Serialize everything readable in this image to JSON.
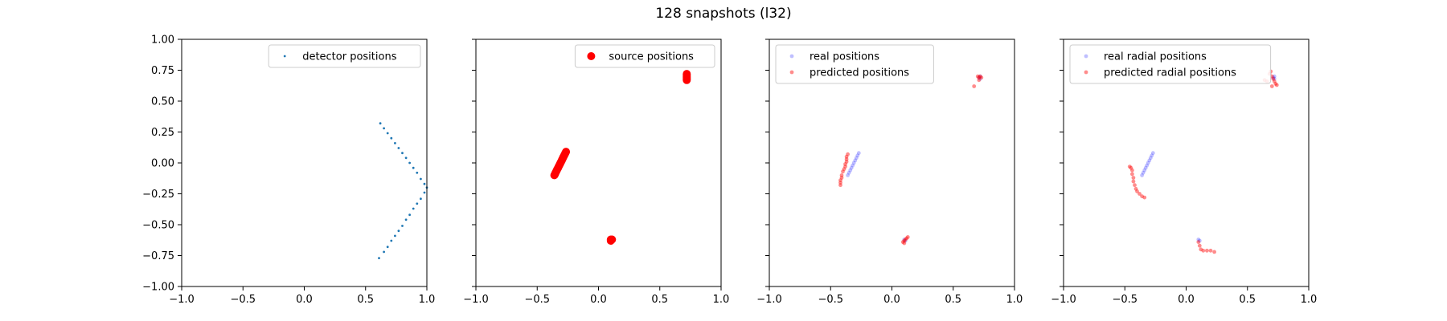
{
  "figure": {
    "title": "128 snapshots (l32)"
  },
  "chart_data": [
    {
      "type": "scatter",
      "xlim": [
        -1.0,
        1.0
      ],
      "ylim": [
        -1.0,
        1.0
      ],
      "xticks": [
        "−1.0",
        "−0.5",
        "0.0",
        "0.5",
        "1.0"
      ],
      "yticks": [
        "1.00",
        "0.75",
        "0.50",
        "0.25",
        "0.00",
        "−0.25",
        "−0.50",
        "−0.75",
        "−1.00"
      ],
      "show_yticklabels": true,
      "legend_position": "top-right",
      "series": [
        {
          "name": "detector positions",
          "color": "#1f77b4",
          "points": [
            [
              0.62,
              0.32
            ],
            [
              0.65,
              0.28
            ],
            [
              0.68,
              0.24
            ],
            [
              0.71,
              0.2
            ],
            [
              0.74,
              0.16
            ],
            [
              0.77,
              0.12
            ],
            [
              0.8,
              0.08
            ],
            [
              0.83,
              0.04
            ],
            [
              0.86,
              0.0
            ],
            [
              0.89,
              -0.04
            ],
            [
              0.92,
              -0.08
            ],
            [
              0.95,
              -0.13
            ],
            [
              0.98,
              -0.17
            ],
            [
              1.0,
              -0.2
            ],
            [
              0.98,
              -0.24
            ],
            [
              0.95,
              -0.29
            ],
            [
              0.92,
              -0.33
            ],
            [
              0.89,
              -0.37
            ],
            [
              0.86,
              -0.42
            ],
            [
              0.83,
              -0.46
            ],
            [
              0.8,
              -0.51
            ],
            [
              0.77,
              -0.55
            ],
            [
              0.74,
              -0.59
            ],
            [
              0.71,
              -0.63
            ],
            [
              0.68,
              -0.68
            ],
            [
              0.65,
              -0.72
            ],
            [
              0.61,
              -0.77
            ]
          ]
        }
      ]
    },
    {
      "type": "scatter",
      "xlim": [
        -1.0,
        1.0
      ],
      "ylim": [
        -1.0,
        1.0
      ],
      "xticks": [
        "−1.0",
        "−0.5",
        "0.0",
        "0.5",
        "1.0"
      ],
      "show_yticklabels": false,
      "legend_position": "top-right",
      "series": [
        {
          "name": "source positions",
          "color": "#ff0000",
          "points": [
            [
              -0.36,
              -0.1
            ],
            [
              -0.355,
              -0.09
            ],
            [
              -0.35,
              -0.08
            ],
            [
              -0.345,
              -0.07
            ],
            [
              -0.34,
              -0.06
            ],
            [
              -0.335,
              -0.05
            ],
            [
              -0.33,
              -0.04
            ],
            [
              -0.325,
              -0.03
            ],
            [
              -0.32,
              -0.02
            ],
            [
              -0.315,
              -0.01
            ],
            [
              -0.31,
              0.0
            ],
            [
              -0.305,
              0.01
            ],
            [
              -0.3,
              0.02
            ],
            [
              -0.295,
              0.03
            ],
            [
              -0.29,
              0.04
            ],
            [
              -0.285,
              0.05
            ],
            [
              -0.28,
              0.06
            ],
            [
              -0.275,
              0.07
            ],
            [
              -0.27,
              0.08
            ],
            [
              -0.265,
              0.09
            ],
            [
              0.72,
              0.72
            ],
            [
              0.72,
              0.71
            ],
            [
              0.72,
              0.7
            ],
            [
              0.72,
              0.69
            ],
            [
              0.72,
              0.68
            ],
            [
              0.72,
              0.67
            ],
            [
              0.1,
              -0.62
            ],
            [
              0.11,
              -0.62
            ],
            [
              0.1,
              -0.63
            ]
          ]
        }
      ]
    },
    {
      "type": "scatter",
      "xlim": [
        -1.0,
        1.0
      ],
      "ylim": [
        -1.0,
        1.0
      ],
      "xticks": [
        "−1.0",
        "−0.5",
        "0.0",
        "0.5",
        "1.0"
      ],
      "show_yticklabels": false,
      "legend_position": "top-left",
      "series": [
        {
          "name": "real positions",
          "color": "#0000ff",
          "points": [
            [
              -0.36,
              -0.1
            ],
            [
              -0.35,
              -0.08
            ],
            [
              -0.34,
              -0.06
            ],
            [
              -0.33,
              -0.04
            ],
            [
              -0.32,
              -0.02
            ],
            [
              -0.31,
              0.0
            ],
            [
              -0.3,
              0.02
            ],
            [
              -0.29,
              0.04
            ],
            [
              -0.28,
              0.06
            ],
            [
              -0.27,
              0.08
            ],
            [
              0.72,
              0.7
            ],
            [
              0.71,
              0.69
            ],
            [
              0.72,
              0.68
            ],
            [
              0.1,
              -0.62
            ],
            [
              0.11,
              -0.63
            ]
          ]
        },
        {
          "name": "predicted positions",
          "color": "#ff0000",
          "points": [
            [
              -0.42,
              -0.18
            ],
            [
              -0.42,
              -0.16
            ],
            [
              -0.42,
              -0.14
            ],
            [
              -0.41,
              -0.12
            ],
            [
              -0.41,
              -0.1
            ],
            [
              -0.4,
              -0.07
            ],
            [
              -0.39,
              -0.05
            ],
            [
              -0.38,
              -0.03
            ],
            [
              -0.38,
              -0.01
            ],
            [
              -0.37,
              0.01
            ],
            [
              -0.37,
              0.03
            ],
            [
              -0.37,
              0.05
            ],
            [
              -0.36,
              0.07
            ],
            [
              0.7,
              0.7
            ],
            [
              0.71,
              0.69
            ],
            [
              0.72,
              0.7
            ],
            [
              0.73,
              0.69
            ],
            [
              0.71,
              0.67
            ],
            [
              0.67,
              0.62
            ],
            [
              0.09,
              -0.64
            ],
            [
              0.1,
              -0.63
            ],
            [
              0.11,
              -0.62
            ],
            [
              0.12,
              -0.61
            ],
            [
              0.13,
              -0.6
            ],
            [
              0.1,
              -0.65
            ]
          ]
        }
      ]
    },
    {
      "type": "scatter",
      "xlim": [
        -1.0,
        1.0
      ],
      "ylim": [
        -1.0,
        1.0
      ],
      "xticks": [
        "−1.0",
        "−0.5",
        "0.0",
        "0.5",
        "1.0"
      ],
      "show_yticklabels": false,
      "legend_position": "top-left",
      "series": [
        {
          "name": "real radial positions",
          "color": "#0000ff",
          "points": [
            [
              -0.36,
              -0.1
            ],
            [
              -0.35,
              -0.08
            ],
            [
              -0.34,
              -0.06
            ],
            [
              -0.33,
              -0.04
            ],
            [
              -0.32,
              -0.02
            ],
            [
              -0.31,
              0.0
            ],
            [
              -0.3,
              0.02
            ],
            [
              -0.29,
              0.04
            ],
            [
              -0.28,
              0.06
            ],
            [
              -0.27,
              0.08
            ],
            [
              0.72,
              0.7
            ],
            [
              0.71,
              0.69
            ],
            [
              0.72,
              0.68
            ],
            [
              0.1,
              -0.62
            ],
            [
              0.11,
              -0.63
            ]
          ]
        },
        {
          "name": "predicted radial positions",
          "color": "#ff0000",
          "points": [
            [
              -0.46,
              -0.03
            ],
            [
              -0.45,
              -0.04
            ],
            [
              -0.44,
              -0.06
            ],
            [
              -0.44,
              -0.09
            ],
            [
              -0.43,
              -0.12
            ],
            [
              -0.43,
              -0.15
            ],
            [
              -0.42,
              -0.18
            ],
            [
              -0.41,
              -0.21
            ],
            [
              -0.4,
              -0.23
            ],
            [
              -0.38,
              -0.25
            ],
            [
              -0.36,
              -0.27
            ],
            [
              -0.34,
              -0.28
            ],
            [
              0.64,
              0.67
            ],
            [
              0.66,
              0.66
            ],
            [
              0.68,
              0.72
            ],
            [
              0.69,
              0.74
            ],
            [
              0.7,
              0.7
            ],
            [
              0.71,
              0.68
            ],
            [
              0.72,
              0.66
            ],
            [
              0.73,
              0.64
            ],
            [
              0.74,
              0.63
            ],
            [
              0.7,
              0.62
            ],
            [
              0.1,
              -0.64
            ],
            [
              0.11,
              -0.67
            ],
            [
              0.12,
              -0.7
            ],
            [
              0.14,
              -0.71
            ],
            [
              0.17,
              -0.71
            ],
            [
              0.2,
              -0.71
            ],
            [
              0.23,
              -0.72
            ]
          ]
        }
      ]
    }
  ]
}
